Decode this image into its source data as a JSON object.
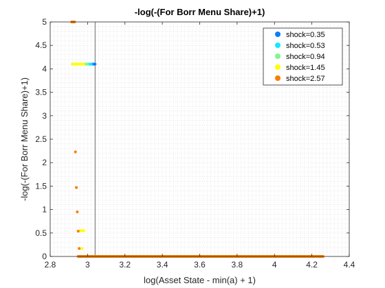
{
  "chart_data": {
    "type": "scatter",
    "title": "-log(-(For Borr Menu Share)+1)",
    "xlabel": "log(Asset State - min(a) + 1)",
    "ylabel": "-log(-(For Borr Menu Share)+1)",
    "xlim": [
      2.8,
      4.4
    ],
    "ylim": [
      0,
      5
    ],
    "xticks": [
      2.8,
      3,
      3.2,
      3.4,
      3.6,
      3.8,
      4,
      4.2,
      4.4
    ],
    "xtick_labels": [
      "2.8",
      "3",
      "3.2",
      "3.4",
      "3.6",
      "3.8",
      "4",
      "4.2",
      "4.4"
    ],
    "yticks": [
      0,
      0.5,
      1,
      1.5,
      2,
      2.5,
      3,
      3.5,
      4,
      4.5,
      5
    ],
    "ytick_labels": [
      "0",
      "0.5",
      "1",
      "1.5",
      "2",
      "2.5",
      "3",
      "3.5",
      "4",
      "4.5",
      "5"
    ],
    "grid": "minor-dotted",
    "legend_position": "top-right",
    "vertical_line_x": 3.04,
    "series": [
      {
        "name": "shock=0.35",
        "color": "#0a7ff5",
        "segments": [
          [
            [
              2.92,
              4.1
            ],
            [
              3.04,
              4.1
            ]
          ]
        ],
        "points": []
      },
      {
        "name": "shock=0.53",
        "color": "#17e8ff",
        "segments": [
          [
            [
              2.92,
              4.1
            ],
            [
              3.02,
              4.1
            ]
          ]
        ],
        "points": []
      },
      {
        "name": "shock=0.94",
        "color": "#7ff78a",
        "segments": [
          [
            [
              2.92,
              4.1
            ],
            [
              3.0,
              4.1
            ]
          ]
        ],
        "points": []
      },
      {
        "name": "shock=1.45",
        "color": "#ffff00",
        "segments": [
          [
            [
              2.92,
              4.1
            ],
            [
              2.98,
              4.1
            ]
          ],
          [
            [
              2.96,
              0.55
            ],
            [
              2.98,
              0.55
            ]
          ]
        ],
        "points": [
          [
            2.97,
            0.17
          ],
          [
            2.95,
            0.0
          ],
          [
            2.97,
            0.0
          ]
        ]
      },
      {
        "name": "shock=2.57",
        "color": "#fa7d00",
        "segments": [
          [
            [
              2.915,
              5.0
            ],
            [
              2.93,
              5.0
            ]
          ],
          [
            [
              2.95,
              0.0
            ],
            [
              4.26,
              0.0
            ]
          ]
        ],
        "points": [
          [
            2.935,
            2.23
          ],
          [
            2.94,
            1.47
          ],
          [
            2.945,
            0.95
          ],
          [
            2.95,
            0.54
          ],
          [
            2.955,
            0.17
          ]
        ]
      }
    ]
  }
}
